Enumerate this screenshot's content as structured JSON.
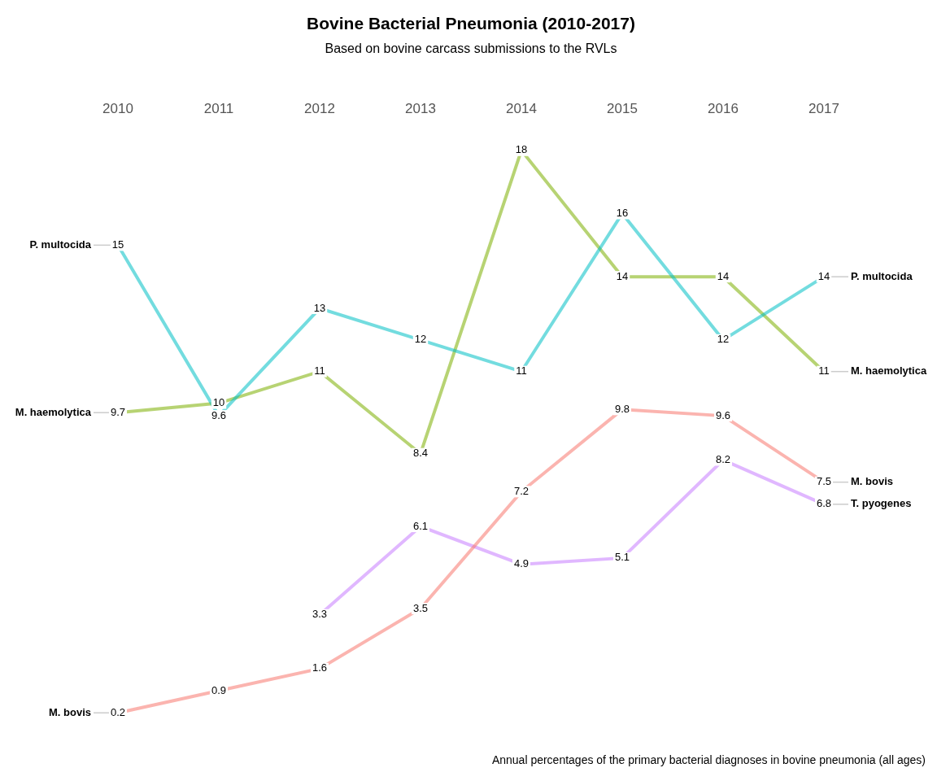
{
  "chart_data": {
    "type": "line",
    "title": "Bovine Bacterial Pneumonia (2010-2017)",
    "subtitle": "Based on bovine carcass submissions to the RVLs",
    "caption": "Annual percentages of the primary bacterial diagnoses in bovine pneumonia (all ages)",
    "categories": [
      "2010",
      "2011",
      "2012",
      "2013",
      "2014",
      "2015",
      "2016",
      "2017"
    ],
    "series": [
      {
        "name": "P. multocida",
        "color": "#00BFC4",
        "values": [
          15,
          9.6,
          13,
          12,
          11,
          16,
          12,
          14
        ]
      },
      {
        "name": "M. haemolytica",
        "color": "#7CAE00",
        "values": [
          9.7,
          10,
          11,
          8.4,
          18,
          14,
          14,
          11
        ]
      },
      {
        "name": "M. bovis",
        "color": "#F8766D",
        "values": [
          0.2,
          0.9,
          1.6,
          3.5,
          7.2,
          9.8,
          9.6,
          7.5
        ]
      },
      {
        "name": "T. pyogenes",
        "color": "#C77CFF",
        "values": [
          null,
          null,
          3.3,
          6.1,
          4.9,
          5.1,
          8.2,
          6.8
        ]
      }
    ],
    "ylim": [
      0,
      18
    ],
    "grid": false,
    "data_labels": true,
    "tick_labels": "x"
  }
}
